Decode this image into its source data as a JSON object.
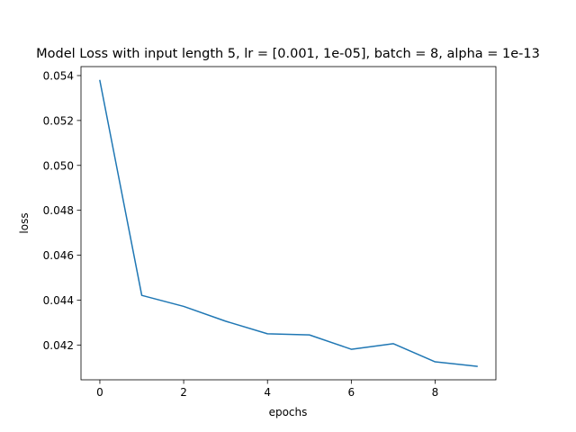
{
  "chart_data": {
    "type": "line",
    "title": "Model Loss with input length 5, lr = [0.001, 1e-05], batch = 8, alpha = 1e-13",
    "xlabel": "epochs",
    "ylabel": "loss",
    "xlim": [
      -0.45,
      9.45
    ],
    "ylim": [
      0.04045,
      0.0544
    ],
    "xticks": [
      0,
      2,
      4,
      6,
      8
    ],
    "xtick_labels": [
      "0",
      "2",
      "4",
      "6",
      "8"
    ],
    "yticks": [
      0.042,
      0.044,
      0.046,
      0.048,
      0.05,
      0.052,
      0.054
    ],
    "ytick_labels": [
      "0.042",
      "0.044",
      "0.046",
      "0.048",
      "0.050",
      "0.052",
      "0.054"
    ],
    "grid": false,
    "legend": "none",
    "series": [
      {
        "color": "#1f77b4",
        "x": [
          0,
          1,
          2,
          3,
          4,
          5,
          6,
          7,
          8,
          9
        ],
        "y": [
          0.05378,
          0.04421,
          0.04372,
          0.04306,
          0.0425,
          0.04245,
          0.04181,
          0.04206,
          0.04125,
          0.04105
        ]
      }
    ]
  }
}
